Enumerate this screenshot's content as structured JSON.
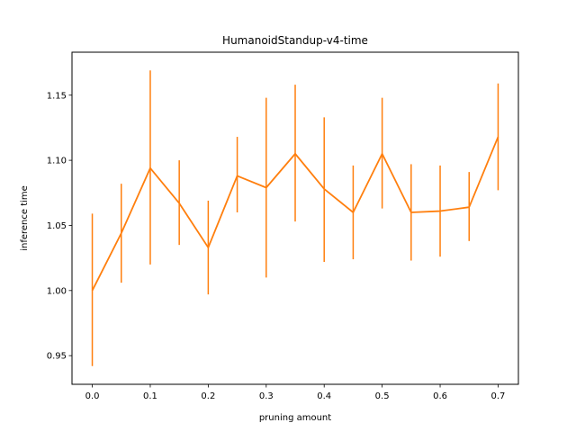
{
  "chart_data": {
    "type": "line",
    "title": "HumanoidStandup-v4-time",
    "xlabel": "pruning amount",
    "ylabel": "inference time",
    "xlim": [
      -0.035,
      0.735
    ],
    "ylim": [
      0.928,
      1.183
    ],
    "xticks": [
      0.0,
      0.1,
      0.2,
      0.3,
      0.4,
      0.5,
      0.6,
      0.7
    ],
    "xtick_labels": [
      "0.0",
      "0.1",
      "0.2",
      "0.3",
      "0.4",
      "0.5",
      "0.6",
      "0.7"
    ],
    "yticks": [
      0.95,
      1.0,
      1.05,
      1.1,
      1.15
    ],
    "ytick_labels": [
      "0.95",
      "1.00",
      "1.05",
      "1.10",
      "1.15"
    ],
    "grid": false,
    "series": [
      {
        "color": "#ff7f0e",
        "x": [
          0.0,
          0.05,
          0.1,
          0.15,
          0.2,
          0.25,
          0.3,
          0.35,
          0.4,
          0.45,
          0.5,
          0.55,
          0.6,
          0.65,
          0.7
        ],
        "y": [
          1.0,
          1.044,
          1.094,
          1.067,
          1.033,
          1.088,
          1.079,
          1.105,
          1.078,
          1.06,
          1.105,
          1.06,
          1.061,
          1.064,
          1.118
        ],
        "yerr_low": [
          0.942,
          1.006,
          1.02,
          1.035,
          0.997,
          1.06,
          1.01,
          1.053,
          1.022,
          1.024,
          1.063,
          1.023,
          1.026,
          1.038,
          1.077
        ],
        "yerr_high": [
          1.059,
          1.082,
          1.169,
          1.1,
          1.069,
          1.118,
          1.148,
          1.158,
          1.133,
          1.096,
          1.148,
          1.097,
          1.096,
          1.091,
          1.159
        ]
      }
    ]
  }
}
